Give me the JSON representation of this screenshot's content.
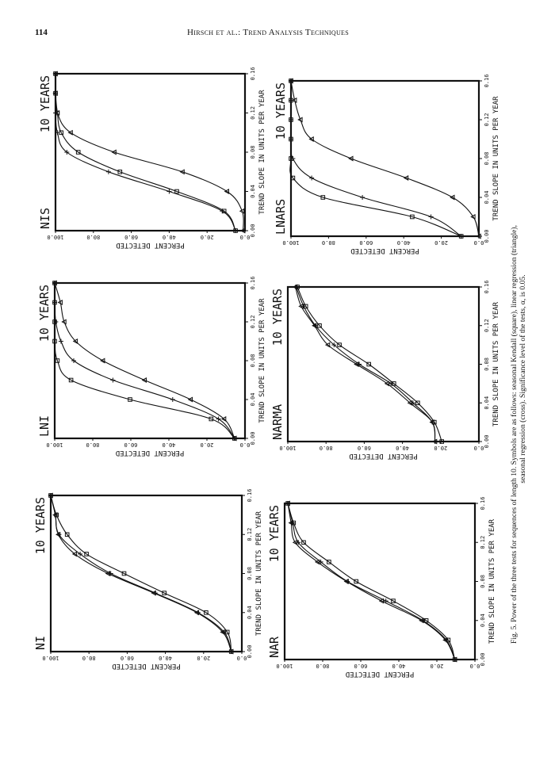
{
  "header": {
    "page_number": "114",
    "running_head": "Hirsch et al.: Trend Analysis Techniques"
  },
  "caption": {
    "line1": "Fig. 5.   Power of the three tests for sequences of length 10. Symbols are as follows: seasonal Kendall (square), linear regression (triangle),",
    "line2": "seasonal regression (cross). Significance level of the tests, α, is 0.05."
  },
  "colors": {
    "ink": "#111111",
    "paper": "#ffffff"
  },
  "chart_data": [
    {
      "type": "line",
      "title": "NIS",
      "subtitle": "10 YEARS",
      "xlabel": "TREND SLOPE IN UNITS PER YEAR",
      "ylabel": "PERCENT DETECTED",
      "xlim": [
        0,
        0.16
      ],
      "ylim": [
        0,
        100
      ],
      "xticks": [
        "0.00",
        "0.04",
        "0.08",
        "0.12",
        "0.16"
      ],
      "yticks": [
        "0.0",
        "20.0",
        "40.0",
        "60.0",
        "80.0",
        "100.0"
      ],
      "x": [
        0,
        0.02,
        0.04,
        0.06,
        0.08,
        0.1,
        0.12,
        0.14,
        0.16
      ],
      "series": [
        {
          "name": "seasonal Kendall",
          "marker": "square",
          "values": [
            5,
            11,
            36,
            66,
            88,
            97,
            99,
            100,
            100
          ]
        },
        {
          "name": "linear regression",
          "marker": "triangle",
          "values": [
            1,
            1.5,
            9.5,
            33,
            69,
            92,
            99,
            100,
            100
          ]
        },
        {
          "name": "seasonal regression",
          "marker": "cross",
          "values": [
            5,
            12,
            40,
            72,
            94,
            99,
            100,
            100,
            100
          ]
        }
      ]
    },
    {
      "type": "line",
      "title": "LNARS",
      "subtitle": "10 YEARS",
      "xlabel": "TREND SLOPE IN UNITS PER YEAR",
      "ylabel": "PERCENT DETECTED",
      "xlim": [
        0,
        0.16
      ],
      "ylim": [
        0,
        100
      ],
      "xticks": [
        "0.00",
        "0.04",
        "0.08",
        "0.12",
        "0.16"
      ],
      "yticks": [
        "0.0",
        "20.0",
        "40.0",
        "60.0",
        "80.0",
        "100.0"
      ],
      "x": [
        0,
        0.02,
        0.04,
        0.06,
        0.08,
        0.1,
        0.12,
        0.14,
        0.16
      ],
      "series": [
        {
          "name": "seasonal Kendall",
          "marker": "square",
          "values": [
            9.4,
            35.5,
            83,
            99,
            100,
            100,
            100,
            100,
            100
          ]
        },
        {
          "name": "linear regression",
          "marker": "triangle",
          "values": [
            0,
            3,
            14,
            38.6,
            68,
            89,
            95,
            98,
            100
          ]
        },
        {
          "name": "seasonal regression",
          "marker": "cross",
          "values": [
            9.4,
            25.5,
            62,
            89,
            99,
            100,
            100,
            100,
            100
          ]
        }
      ]
    },
    {
      "type": "line",
      "title": "LNI",
      "subtitle": "10 YEARS",
      "xlabel": "TREND SLOPE IN UNITS PER YEAR",
      "ylabel": "PERCENT DETECTED",
      "xlim": [
        0,
        0.16
      ],
      "ylim": [
        0,
        100
      ],
      "xticks": [
        "0.00",
        "0.04",
        "0.08",
        "0.12",
        "0.16"
      ],
      "yticks": [
        "0.0",
        "20.0",
        "40.0",
        "60.0",
        "80.0",
        "100.0"
      ],
      "x": [
        0,
        0.02,
        0.04,
        0.06,
        0.08,
        0.1,
        0.12,
        0.14,
        0.16
      ],
      "series": [
        {
          "name": "seasonal Kendall",
          "marker": "square",
          "values": [
            5.5,
            17.8,
            60.4,
            91.4,
            98.6,
            100,
            100,
            100,
            100
          ]
        },
        {
          "name": "linear regression",
          "marker": "triangle",
          "values": [
            5.5,
            11,
            28.6,
            52.8,
            74.7,
            89,
            95,
            97,
            100
          ]
        },
        {
          "name": "seasonal regression",
          "marker": "cross",
          "values": [
            5.5,
            13.9,
            38,
            69.4,
            90,
            96.7,
            99.4,
            100,
            100
          ]
        }
      ]
    },
    {
      "type": "line",
      "title": "NARMA",
      "subtitle": "10 YEARS",
      "xlabel": "TREND SLOPE IN UNITS PER YEAR",
      "ylabel": "PERCENT DETECTED",
      "xlim": [
        0,
        0.16
      ],
      "ylim": [
        0,
        100
      ],
      "xticks": [
        "0.00",
        "0.04",
        "0.08",
        "0.12",
        "0.16"
      ],
      "yticks": [
        "0.0",
        "20.0",
        "40.0",
        "60.0",
        "80.0",
        "100.0"
      ],
      "x": [
        0,
        0.02,
        0.04,
        0.06,
        0.08,
        0.1,
        0.12,
        0.14,
        0.16
      ],
      "series": [
        {
          "name": "seasonal Kendall",
          "marker": "square",
          "values": [
            19.4,
            23.3,
            32,
            44.5,
            57.6,
            73,
            83.4,
            90.6,
            95
          ]
        },
        {
          "name": "linear regression",
          "marker": "triangle",
          "values": [
            23,
            24.4,
            36,
            48,
            64,
            79,
            86,
            93,
            96
          ]
        },
        {
          "name": "seasonal regression",
          "marker": "cross",
          "values": [
            23,
            24.4,
            34.5,
            46,
            62.6,
            75.8,
            85.5,
            91.7,
            95.6
          ]
        }
      ]
    },
    {
      "type": "line",
      "title": "NI",
      "subtitle": "10 YEARS",
      "xlabel": "TREND SLOPE IN UNITS PER YEAR",
      "ylabel": "PERCENT DETECTED",
      "xlim": [
        0,
        0.16
      ],
      "ylim": [
        0,
        100
      ],
      "xticks": [
        "0.00",
        "0.04",
        "0.08",
        "0.12",
        "0.16"
      ],
      "yticks": [
        "0.0",
        "20.0",
        "40.0",
        "60.0",
        "80.0",
        "100.0"
      ],
      "x": [
        0,
        0.02,
        0.04,
        0.06,
        0.08,
        0.1,
        0.12,
        0.14,
        0.16
      ],
      "series": [
        {
          "name": "seasonal Kendall",
          "marker": "square",
          "values": [
            5.5,
            7.6,
            18.7,
            40.6,
            61.6,
            81.3,
            91.4,
            97,
            100
          ]
        },
        {
          "name": "linear regression",
          "marker": "triangle",
          "values": [
            5.5,
            10,
            23.5,
            46,
            70,
            87.4,
            96,
            97.6,
            100
          ]
        },
        {
          "name": "seasonal regression",
          "marker": "cross",
          "values": [
            5.5,
            9.3,
            22.9,
            45.3,
            68.6,
            84.6,
            95.7,
            97.6,
            100
          ]
        }
      ]
    },
    {
      "type": "line",
      "title": "NAR",
      "subtitle": "10 YEARS",
      "xlabel": "TREND SLOPE IN UNITS PER YEAR",
      "ylabel": "PERCENT DETECTED",
      "xlim": [
        0,
        0.16
      ],
      "ylim": [
        0,
        100
      ],
      "xticks": [
        "0.00",
        "0.04",
        "0.08",
        "0.12",
        "0.16"
      ],
      "yticks": [
        "0.0",
        "20.0",
        "40.0",
        "60.0",
        "80.0",
        "100.0"
      ],
      "x": [
        0,
        0.02,
        0.04,
        0.06,
        0.08,
        0.1,
        0.12,
        0.14,
        0.16
      ],
      "series": [
        {
          "name": "seasonal Kendall",
          "marker": "square",
          "values": [
            10.6,
            14,
            25.6,
            42.9,
            62.4,
            76.7,
            90,
            95.3,
            98.3
          ]
        },
        {
          "name": "linear regression",
          "marker": "triangle",
          "values": [
            10.6,
            15.5,
            28,
            49,
            67.4,
            82.7,
            94.4,
            96.6,
            98.3
          ]
        },
        {
          "name": "seasonal regression",
          "marker": "cross",
          "values": [
            10.6,
            15,
            27.3,
            46.8,
            67,
            81,
            92.8,
            95.8,
            98.3
          ]
        }
      ]
    }
  ]
}
